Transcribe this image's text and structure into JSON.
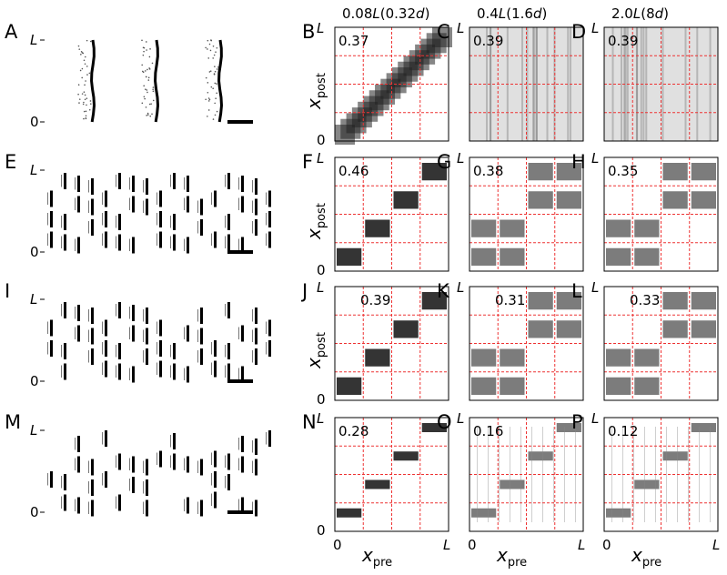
{
  "columns": [
    {
      "label": "B",
      "title_prefix": "0.08",
      "title_mid": "(0.32",
      "title_end": ")"
    },
    {
      "label": "C",
      "title_prefix": "0.4",
      "title_mid": "(1.6",
      "title_end": ")"
    },
    {
      "label": "D",
      "title_prefix": "2.0",
      "title_mid": "(8",
      "title_end": ")"
    }
  ],
  "rows": [
    {
      "label": "A",
      "pattern": "continuous",
      "panel_labels": [
        "B",
        "C",
        "D"
      ],
      "values": [
        "0.37",
        "0.39",
        "0.39"
      ]
    },
    {
      "label": "E",
      "pattern": "blocks",
      "panel_labels": [
        "F",
        "G",
        "H"
      ],
      "values": [
        "0.46",
        "0.38",
        "0.35"
      ]
    },
    {
      "label": "I",
      "pattern": "blocks",
      "panel_labels": [
        "J",
        "K",
        "L"
      ],
      "values": [
        "0.39",
        "0.31",
        "0.33"
      ]
    },
    {
      "label": "M",
      "pattern": "sparse",
      "panel_labels": [
        "N",
        "O",
        "P"
      ],
      "values": [
        "0.28",
        "0.16",
        "0.12"
      ]
    }
  ],
  "raster_axis": {
    "top": "L",
    "bottom": "0"
  },
  "matrix_axis": {
    "y_top": "L",
    "y_bottom": "0",
    "x_left": "0",
    "x_right": "L",
    "ylabel_main": "x",
    "ylabel_sub": "post",
    "xlabel_main": "x",
    "xlabel_sub": "pre"
  },
  "symbols": {
    "L": "L",
    "d": "d"
  }
}
